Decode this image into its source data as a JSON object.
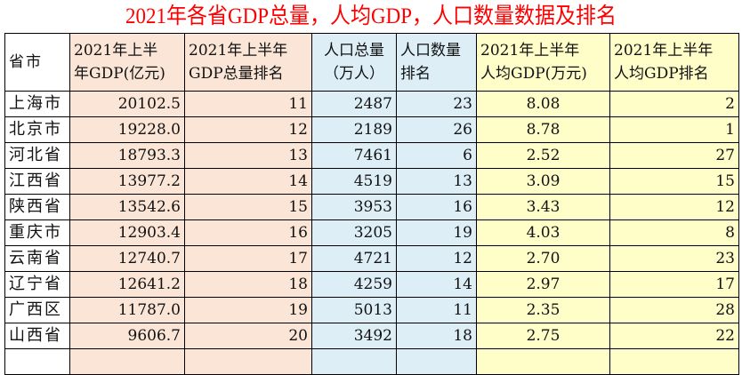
{
  "title": "2021年各省GDP总量，人均GDP，人口数量数据及排名",
  "headers": {
    "province": "省市",
    "gdp_l1": "2021年上半",
    "gdp_l2": "年GDP(亿元)",
    "gdp_rank_l1": "2021年上半年",
    "gdp_rank_l2": "GDP总量排名",
    "pop_l1": "人口总量",
    "pop_l2": "（万人）",
    "pop_rank_l1": "人口数量",
    "pop_rank_l2": "排名",
    "pc_l1": "2021年上半年",
    "pc_l2": "人均GDP(万元)",
    "pc_rank_l1": "2021年上半年",
    "pc_rank_l2": "人均GDP排名"
  },
  "colors": {
    "title": "#ff0000",
    "gdp_columns": "#fbe5d6",
    "population_columns": "#ddeef6",
    "per_capita_columns": "#fffdc8"
  },
  "rows": [
    {
      "province": "上海市",
      "gdp": "20102.5",
      "gdp_rank": "11",
      "population": "2487",
      "pop_rank": "23",
      "per_capita": "8.08",
      "pc_rank": "2"
    },
    {
      "province": "北京市",
      "gdp": "19228.0",
      "gdp_rank": "12",
      "population": "2189",
      "pop_rank": "26",
      "per_capita": "8.78",
      "pc_rank": "1"
    },
    {
      "province": "河北省",
      "gdp": "18793.3",
      "gdp_rank": "13",
      "population": "7461",
      "pop_rank": "6",
      "per_capita": "2.52",
      "pc_rank": "27"
    },
    {
      "province": "江西省",
      "gdp": "13977.2",
      "gdp_rank": "14",
      "population": "4519",
      "pop_rank": "13",
      "per_capita": "3.09",
      "pc_rank": "15"
    },
    {
      "province": "陕西省",
      "gdp": "13542.6",
      "gdp_rank": "15",
      "population": "3953",
      "pop_rank": "16",
      "per_capita": "3.43",
      "pc_rank": "12"
    },
    {
      "province": "重庆市",
      "gdp": "12903.4",
      "gdp_rank": "16",
      "population": "3205",
      "pop_rank": "19",
      "per_capita": "4.03",
      "pc_rank": "8"
    },
    {
      "province": "云南省",
      "gdp": "12740.7",
      "gdp_rank": "17",
      "population": "4721",
      "pop_rank": "12",
      "per_capita": "2.70",
      "pc_rank": "23"
    },
    {
      "province": "辽宁省",
      "gdp": "12641.2",
      "gdp_rank": "18",
      "population": "4259",
      "pop_rank": "14",
      "per_capita": "2.97",
      "pc_rank": "17"
    },
    {
      "province": "广西区",
      "gdp": "11787.0",
      "gdp_rank": "19",
      "population": "5013",
      "pop_rank": "11",
      "per_capita": "2.35",
      "pc_rank": "28"
    },
    {
      "province": "山西省",
      "gdp": "9606.7",
      "gdp_rank": "20",
      "population": "3492",
      "pop_rank": "18",
      "per_capita": "2.75",
      "pc_rank": "22"
    }
  ]
}
